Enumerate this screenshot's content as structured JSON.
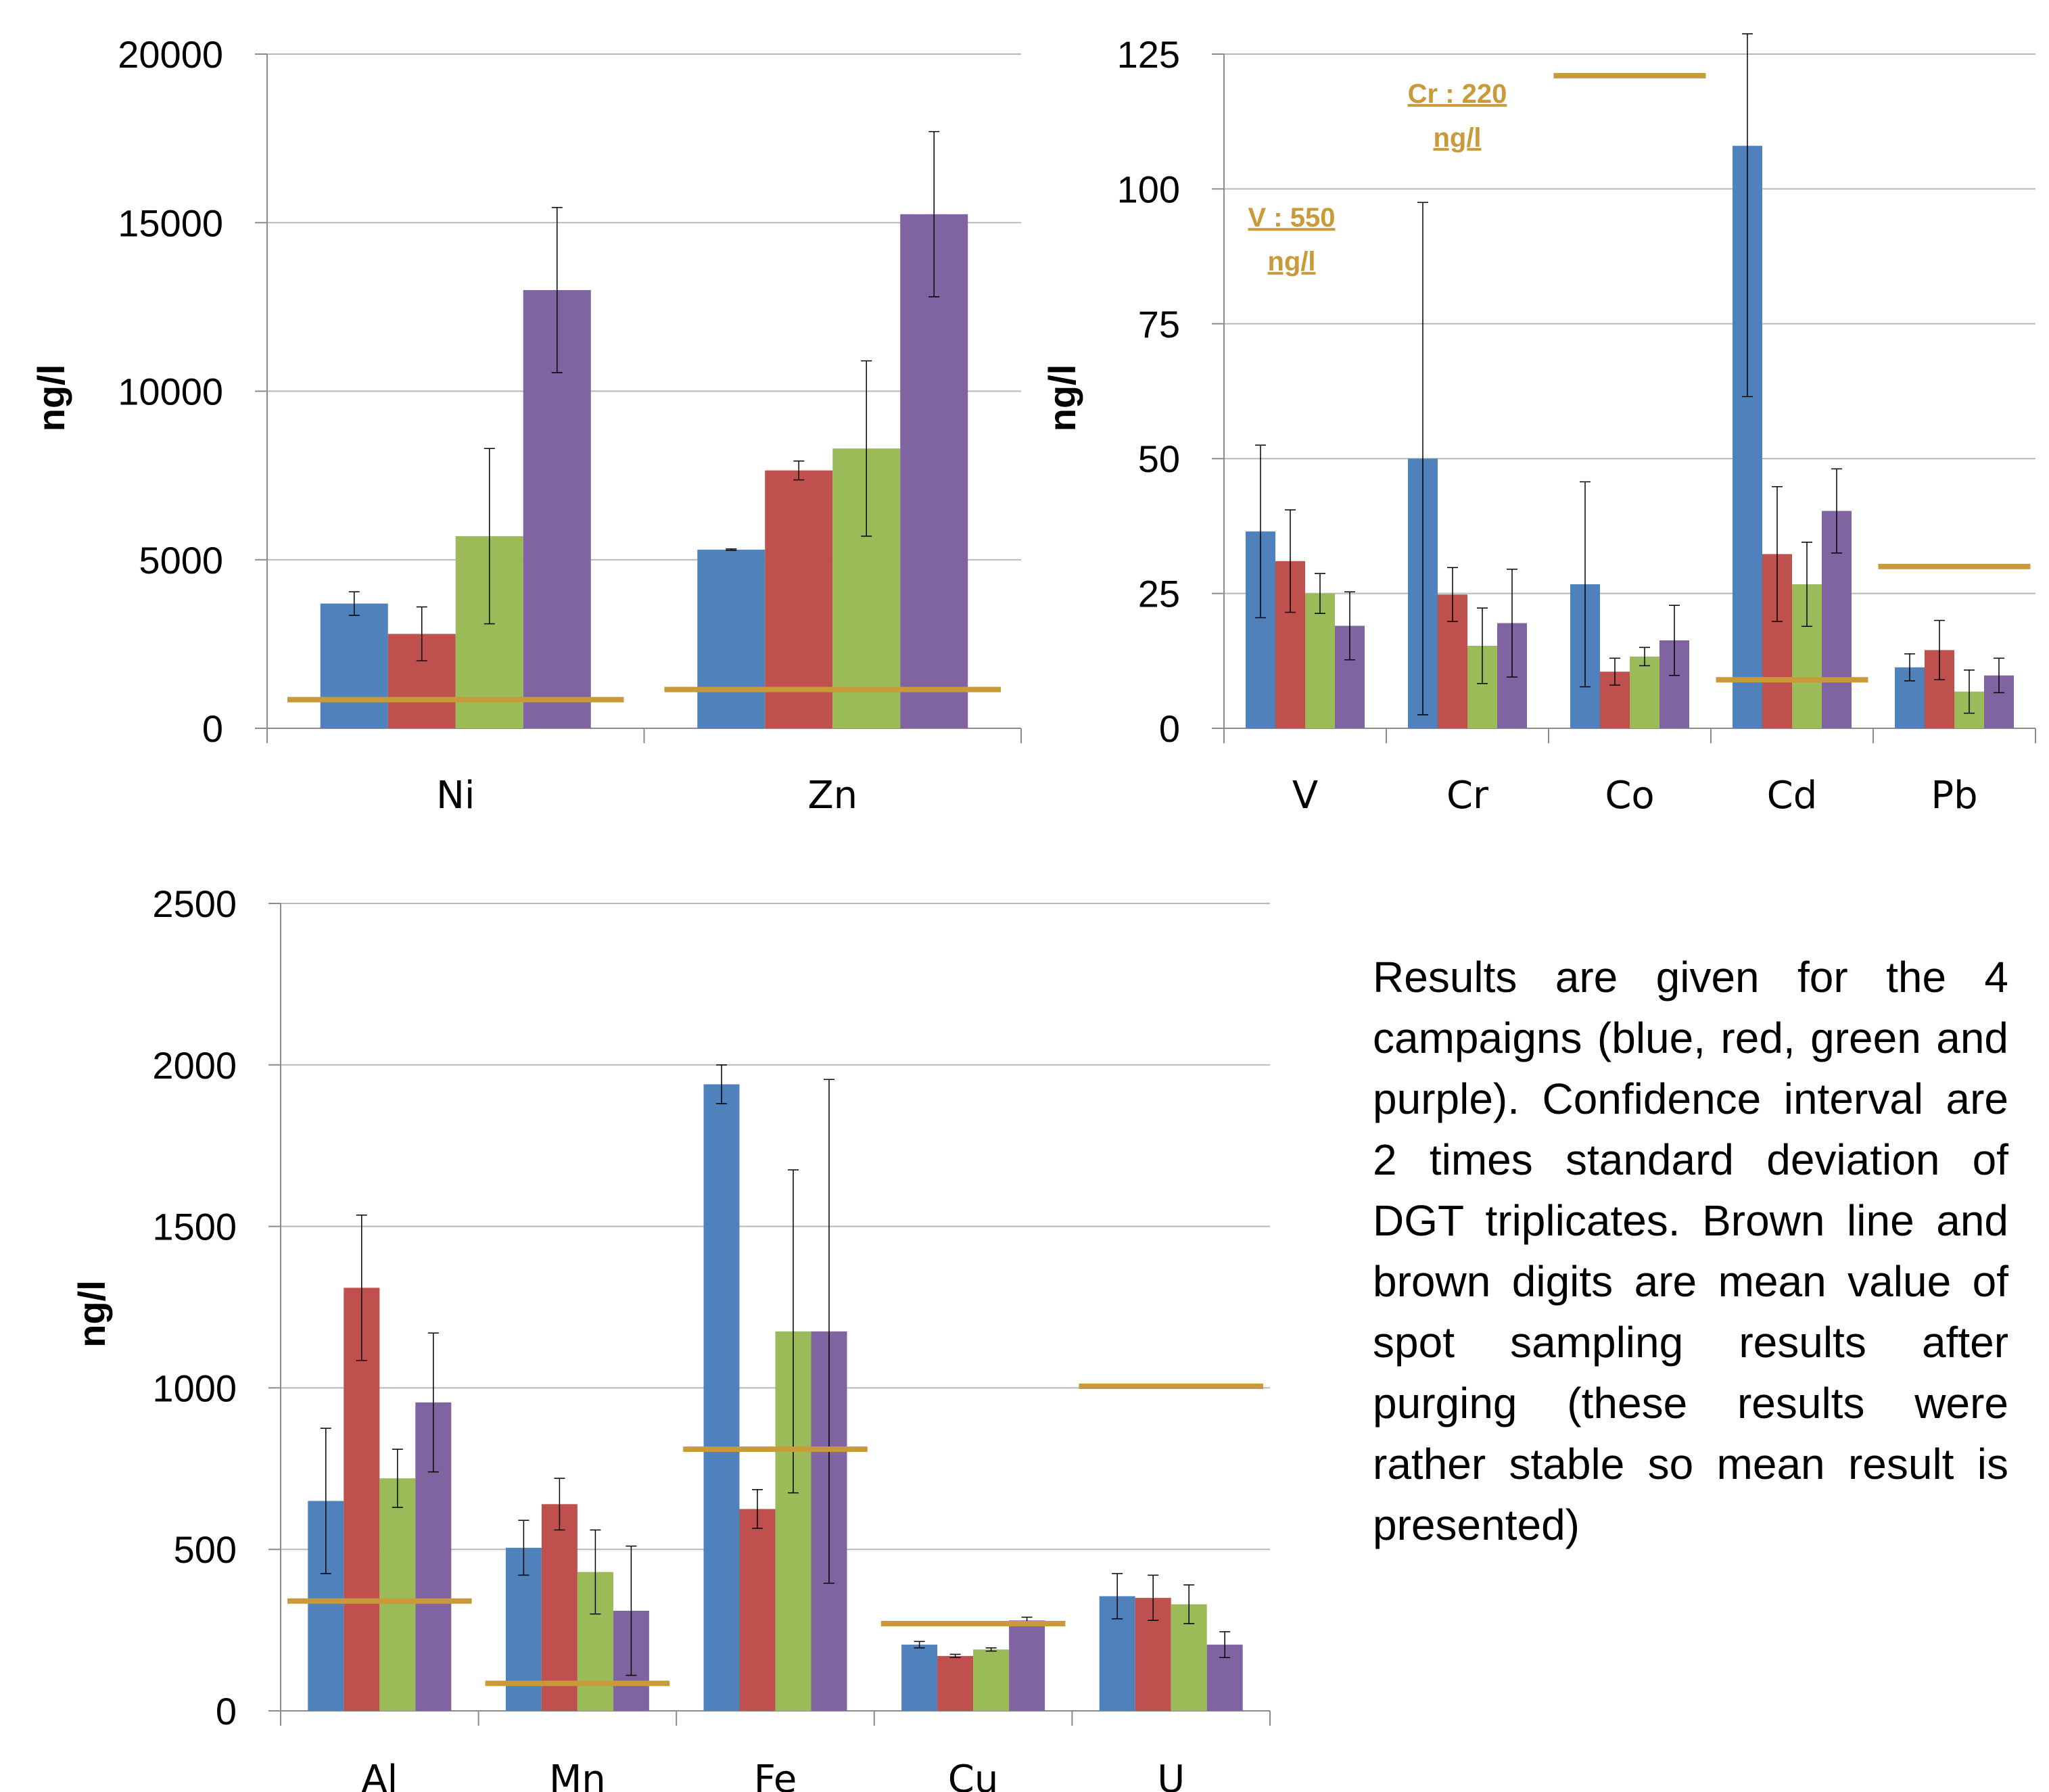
{
  "colors": {
    "series": [
      "#4f81bd",
      "#c0504d",
      "#9bbb59",
      "#8064a2"
    ],
    "reference_line": "#c89a3a",
    "gridline": "#b8b8b8",
    "axis": "#8c8c8c",
    "error_bar": "#000000"
  },
  "caption": "Results are given for the 4 campaigns (blue, red, green and purple). Confidence interval are 2 times standard deviation of DGT triplicates. Brown line and brown digits are mean value of spot sampling results after purging (these results were rather stable so mean result is presented)",
  "chart_data": [
    {
      "type": "bar",
      "ylabel": "ng/l",
      "ylim": [
        0,
        20000
      ],
      "yticks": [
        0,
        5000,
        10000,
        15000,
        20000
      ],
      "grid": true,
      "categories": [
        "Ni",
        "Zn"
      ],
      "series": [
        {
          "color": "#4f81bd",
          "values": [
            3700,
            5300
          ],
          "errors": [
            350,
            20
          ]
        },
        {
          "color": "#c0504d",
          "values": [
            2800,
            7650
          ],
          "errors": [
            800,
            280
          ]
        },
        {
          "color": "#9bbb59",
          "values": [
            5700,
            8300
          ],
          "errors": [
            2600,
            2600
          ]
        },
        {
          "color": "#8064a2",
          "values": [
            13000,
            15250
          ],
          "errors": [
            2450,
            2450
          ]
        }
      ],
      "reference_lines": [
        {
          "category": "Ni",
          "value": 850
        },
        {
          "category": "Zn",
          "value": 1150
        }
      ],
      "annotations": []
    },
    {
      "type": "bar",
      "ylabel": "ng/l",
      "ylim": [
        0,
        125
      ],
      "yticks": [
        0,
        25,
        50,
        75,
        100,
        125
      ],
      "grid": true,
      "categories": [
        "V",
        "Cr",
        "Co",
        "Cd",
        "Pb"
      ],
      "series": [
        {
          "color": "#4f81bd",
          "values": [
            36.5,
            50,
            26.7,
            108,
            11.3
          ],
          "errors": [
            16,
            47.5,
            19,
            46.5,
            2.5
          ]
        },
        {
          "color": "#c0504d",
          "values": [
            31,
            24.8,
            10.5,
            32.3,
            14.5
          ],
          "errors": [
            9.5,
            5,
            2.5,
            12.5,
            5.5
          ]
        },
        {
          "color": "#9bbb59",
          "values": [
            25,
            15.3,
            13.3,
            26.7,
            6.8
          ],
          "errors": [
            3.7,
            7,
            1.7,
            7.8,
            4
          ]
        },
        {
          "color": "#8064a2",
          "values": [
            19,
            19.5,
            16.3,
            40.3,
            9.8
          ],
          "errors": [
            6.3,
            10,
            6.5,
            7.8,
            3.2
          ]
        }
      ],
      "reference_lines": [
        {
          "category": "Co",
          "value": 121
        },
        {
          "category": "Cd",
          "value": 9
        },
        {
          "category": "Pb",
          "value": 30
        }
      ],
      "annotations": [
        {
          "category": "V",
          "lines": [
            "V : 550",
            "ng/l"
          ],
          "value": 93
        },
        {
          "category": "Cr",
          "lines": [
            "Cr : 220",
            "ng/l"
          ],
          "value": 116
        }
      ]
    },
    {
      "type": "bar",
      "ylabel": "ng/l",
      "ylim": [
        0,
        2500
      ],
      "yticks": [
        0,
        500,
        1000,
        1500,
        2000,
        2500
      ],
      "grid": true,
      "categories": [
        "Al",
        "Mn",
        "Fe",
        "Cu",
        "U"
      ],
      "series": [
        {
          "color": "#4f81bd",
          "values": [
            650,
            505,
            1940,
            205,
            355
          ],
          "errors": [
            225,
            85,
            60,
            10,
            70
          ]
        },
        {
          "color": "#c0504d",
          "values": [
            1310,
            640,
            625,
            170,
            350
          ],
          "errors": [
            225,
            80,
            60,
            5,
            70
          ]
        },
        {
          "color": "#9bbb59",
          "values": [
            720,
            430,
            1175,
            190,
            330
          ],
          "errors": [
            90,
            130,
            500,
            5,
            60
          ]
        },
        {
          "color": "#8064a2",
          "values": [
            955,
            310,
            1175,
            280,
            205
          ],
          "errors": [
            215,
            200,
            780,
            10,
            40
          ]
        }
      ],
      "reference_lines": [
        {
          "category": "Al",
          "value": 340
        },
        {
          "category": "Mn",
          "value": 85
        },
        {
          "category": "Fe",
          "value": 810
        },
        {
          "category": "Cu",
          "value": 270
        },
        {
          "category": "U",
          "value": 1005
        }
      ],
      "annotations": []
    }
  ]
}
